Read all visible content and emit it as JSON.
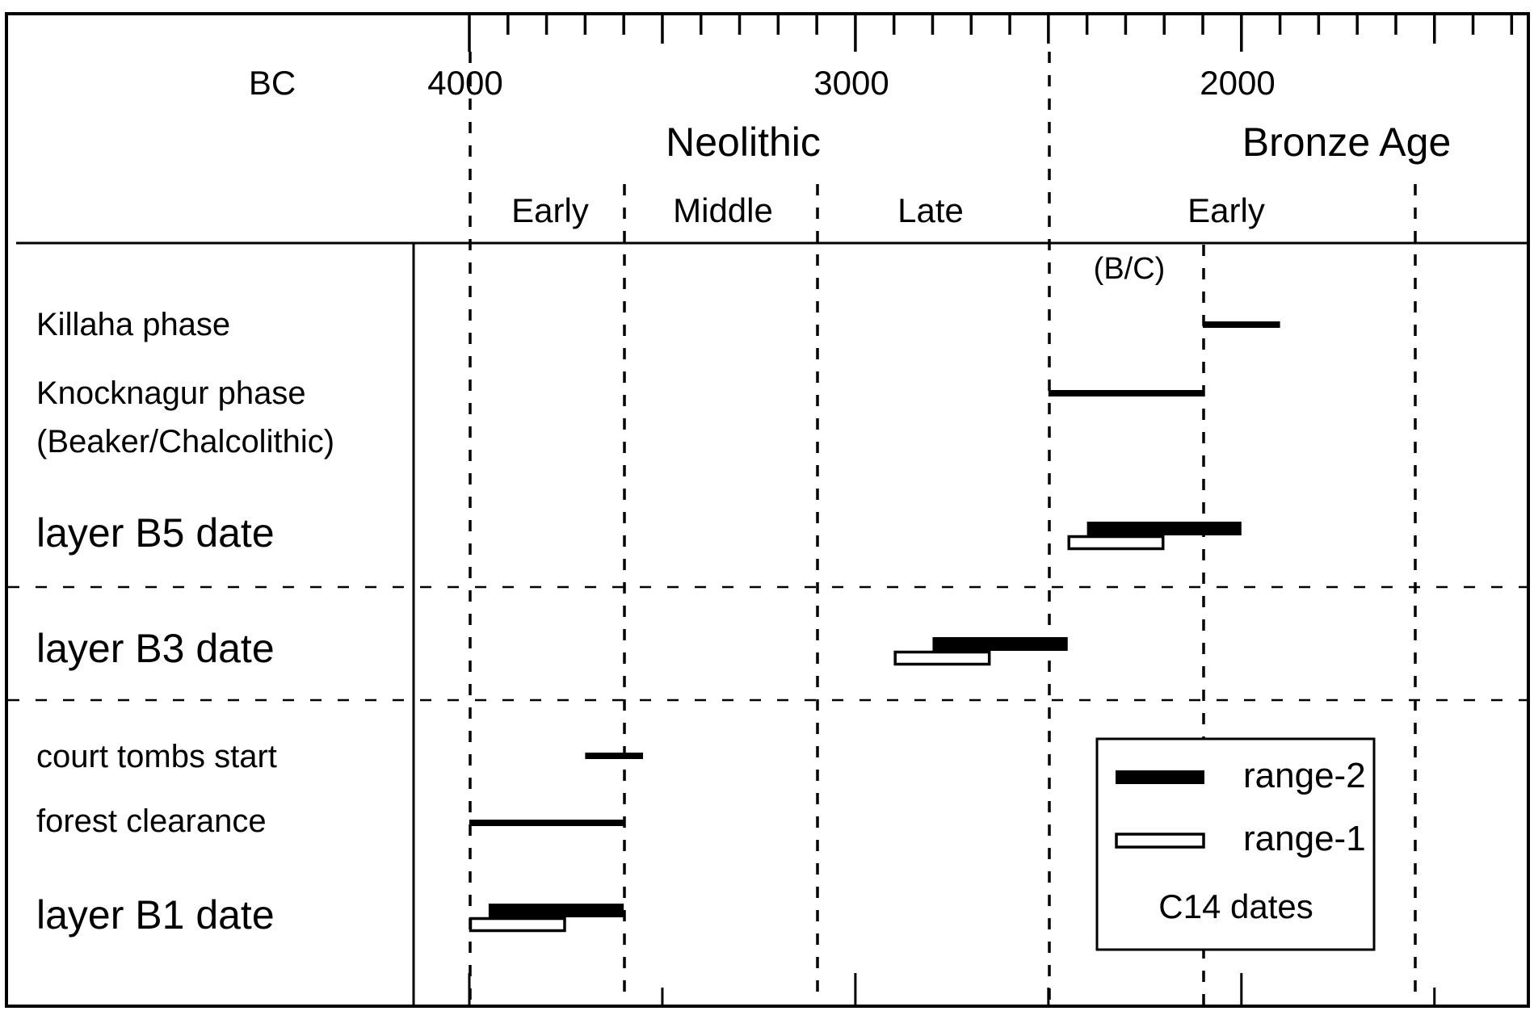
{
  "chart_data": {
    "type": "timeline",
    "title": "",
    "xlabel": "BC",
    "axis_unit_label": "BC",
    "x_range": [
      4200,
      1400
    ],
    "x_direction": "decreasing-years-left-to-right",
    "major_ticks": [
      4000,
      3000,
      2000
    ],
    "major_tick_labels": [
      "4000",
      "3000",
      "2000"
    ],
    "minor_tick_interval": 100,
    "mid_ticks": [
      3500,
      2500,
      1500
    ],
    "grid": true,
    "periods": [
      {
        "name": "Neolithic",
        "start": 4000,
        "end": 2500
      },
      {
        "name": "Bronze Age",
        "start": 2500,
        "end": 1400
      }
    ],
    "sub_periods": [
      {
        "name": "Early",
        "parent": "Neolithic",
        "start": 4000,
        "end": 3600
      },
      {
        "name": "Middle",
        "parent": "Neolithic",
        "start": 3600,
        "end": 3100
      },
      {
        "name": "Late",
        "parent": "Neolithic",
        "start": 3100,
        "end": 2500
      },
      {
        "name": "Early",
        "parent": "Bronze Age",
        "start": 2500,
        "end": 1550
      }
    ],
    "annotations": [
      {
        "text": "(B/C)",
        "start": 2500,
        "end": 2100
      }
    ],
    "period_boundaries": [
      4000,
      3600,
      3100,
      2500,
      2100,
      1550
    ],
    "rows": [
      {
        "label": "Killaha phase",
        "kind": "line",
        "start": 2100,
        "end": 1900
      },
      {
        "label": "Knocknagur phase\n(Beaker/Chalcolithic)",
        "kind": "line",
        "start": 2500,
        "end": 2100
      },
      {
        "label": "layer B5 date",
        "kind": "c14",
        "range_2": [
          2400,
          2000
        ],
        "range_1": [
          2450,
          2200
        ]
      },
      {
        "label": "layer B3 date",
        "kind": "c14",
        "range_2": [
          2800,
          2450
        ],
        "range_1": [
          2900,
          2650
        ]
      },
      {
        "label": "court tombs start",
        "kind": "line",
        "start": 3700,
        "end": 3550
      },
      {
        "label": "forest clearance",
        "kind": "line",
        "start": 4000,
        "end": 3600
      },
      {
        "label": "layer B1 date",
        "kind": "c14",
        "range_2": [
          3950,
          3600
        ],
        "range_1": [
          4000,
          3750
        ]
      }
    ],
    "legend": {
      "position": "lower-right",
      "entries": [
        {
          "label": "range-2",
          "style": "filled"
        },
        {
          "label": "range-1",
          "style": "outline"
        }
      ],
      "caption": "C14 dates"
    }
  },
  "header": {
    "bc_label": "BC",
    "tick_4000": "4000",
    "tick_3000": "3000",
    "tick_2000": "2000",
    "period_neolithic": "Neolithic",
    "period_bronze_age": "Bronze Age",
    "sub_early_neolithic": "Early",
    "sub_middle_neolithic": "Middle",
    "sub_late_neolithic": "Late",
    "sub_early_bronze": "Early",
    "bc_annotation": "(B/C)"
  },
  "rows": {
    "killaha": "Killaha phase",
    "knocknagur_1": "Knocknagur phase",
    "knocknagur_2": "(Beaker/Chalcolithic)",
    "b5": "layer B5 date",
    "b3": "layer B3 date",
    "court_tombs": "court tombs start",
    "forest": "forest clearance",
    "b1": "layer B1 date"
  },
  "legend": {
    "range2": "range-2",
    "range1": "range-1",
    "caption": "C14 dates"
  }
}
